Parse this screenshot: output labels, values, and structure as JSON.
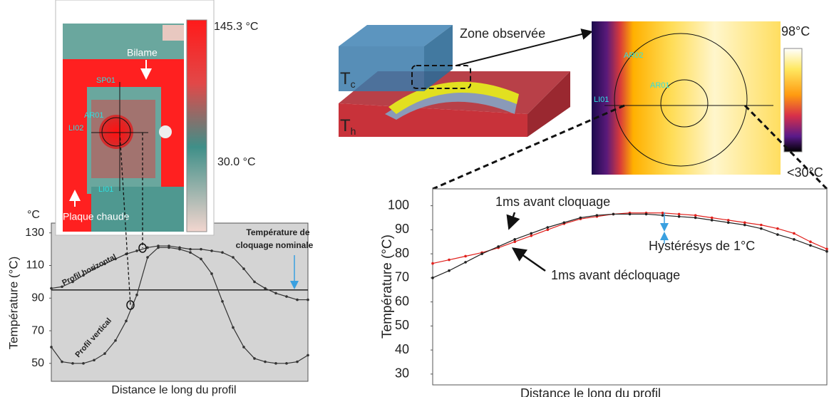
{
  "left_thermal": {
    "max_label": "145.3 °C",
    "min_label": "30.0 °C",
    "labels": [
      "Bilame",
      "SP01",
      "AR01",
      "LI02",
      "LI01",
      "Plaque chaude"
    ]
  },
  "schematic": {
    "zone_label": "Zone observée",
    "tc": {
      "main": "T",
      "sub": "c"
    },
    "th": {
      "main": "T",
      "sub": "h"
    }
  },
  "right_thermal": {
    "max_label": "98°C",
    "min_label": "<30°C",
    "labels": [
      "AR02",
      "AR01",
      "LI01"
    ]
  },
  "chart_data": [
    {
      "type": "line",
      "unit_label": "°C",
      "y_label": "Température (°C)",
      "x_label": "Distance le long du profil",
      "annotation": [
        "Température de",
        "cloquage nominale"
      ],
      "reference_line": 95,
      "categories": [
        null,
        null,
        null,
        null,
        null,
        null,
        null,
        null,
        null,
        null,
        null,
        null,
        null,
        null,
        null,
        null,
        null,
        null,
        null,
        null,
        null,
        null,
        null,
        null,
        null
      ],
      "series": [
        {
          "name": "Profil horizontal",
          "color": "#333333",
          "values": [
            96,
            97,
            100,
            104,
            108,
            111,
            114,
            117,
            119,
            121,
            122,
            122,
            121,
            120,
            120,
            119,
            118,
            115,
            108,
            100,
            96,
            93,
            91,
            89,
            89
          ]
        },
        {
          "name": "Profil vertical",
          "color": "#333333",
          "values": [
            60,
            51,
            50,
            50,
            52,
            56,
            64,
            76,
            92,
            115,
            121,
            121,
            120,
            118,
            114,
            105,
            88,
            72,
            60,
            53,
            51,
            50,
            50,
            51,
            55
          ]
        }
      ],
      "ylim": [
        39,
        136
      ],
      "yticks": [
        50,
        70,
        90,
        110,
        130
      ],
      "background": "#d4d4d4"
    },
    {
      "type": "line",
      "y_label": "Température (°C)",
      "x_label": "Distance le long du profil",
      "annotation": "Hystérésys de 1°C",
      "categories": [
        null,
        null,
        null,
        null,
        null,
        null,
        null,
        null,
        null,
        null,
        null,
        null,
        null,
        null,
        null,
        null,
        null,
        null,
        null,
        null,
        null,
        null,
        null,
        null,
        null
      ],
      "series": [
        {
          "name": "1ms avant cloquage",
          "color": "#e0201c",
          "values": [
            76,
            77.5,
            79,
            80.5,
            82.5,
            85,
            87.5,
            90,
            92.5,
            94.5,
            95.5,
            96.5,
            97,
            97,
            97,
            96.5,
            96,
            95,
            94,
            93,
            92,
            90.5,
            88.5,
            85,
            82
          ]
        },
        {
          "name": "1ms avant décloquage",
          "color": "#222222",
          "values": [
            70,
            73,
            76.5,
            80,
            83,
            86,
            88.5,
            91,
            93,
            95,
            96,
            96.5,
            96.5,
            96.5,
            96,
            95.5,
            95,
            94,
            93,
            92,
            90.5,
            88,
            86,
            83.5,
            81
          ]
        }
      ],
      "ylim": [
        25.5,
        107
      ],
      "yticks": [
        30,
        40,
        50,
        60,
        70,
        80,
        90,
        100
      ],
      "background": "#ffffff"
    }
  ]
}
